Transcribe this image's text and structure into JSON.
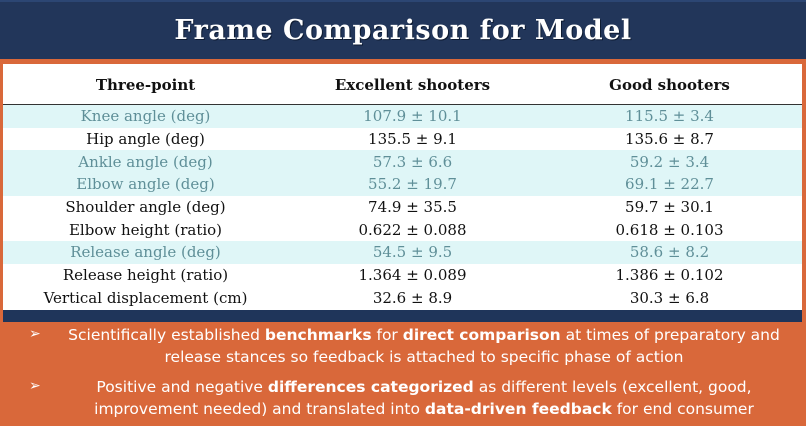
{
  "title": "Frame Comparison for Model",
  "table": {
    "headers": [
      "Three-point",
      "Excellent shooters",
      "Good shooters"
    ],
    "rows": [
      {
        "label": "Knee angle (deg)",
        "excellent": "107.9 ± 10.1",
        "good": "115.5 ± 3.4",
        "highlight": true
      },
      {
        "label": "Hip angle (deg)",
        "excellent": "135.5 ± 9.1",
        "good": "135.6 ± 8.7",
        "highlight": false
      },
      {
        "label": "Ankle angle (deg)",
        "excellent": "57.3 ± 6.6",
        "good": "59.2 ± 3.4",
        "highlight": true
      },
      {
        "label": "Elbow angle (deg)",
        "excellent": "55.2 ± 19.7",
        "good": "69.1 ± 22.7",
        "highlight": true
      },
      {
        "label": "Shoulder angle (deg)",
        "excellent": "74.9 ± 35.5",
        "good": "59.7 ± 30.1",
        "highlight": false
      },
      {
        "label": "Elbow height (ratio)",
        "excellent": "0.622 ± 0.088",
        "good": "0.618 ± 0.103",
        "highlight": false
      },
      {
        "label": "Release angle (deg)",
        "excellent": "54.5 ± 9.5",
        "good": "58.6 ± 8.2",
        "highlight": true
      },
      {
        "label": "Release height (ratio)",
        "excellent": "1.364 ± 0.089",
        "good": "1.386 ± 0.102",
        "highlight": false
      },
      {
        "label": "Vertical displacement (cm)",
        "excellent": "32.6 ± 8.9",
        "good": "30.3 ± 6.8",
        "highlight": false
      }
    ]
  },
  "bullets": [
    {
      "symbol": "➢",
      "parts": [
        {
          "text": "Scientifically established ",
          "bold": false
        },
        {
          "text": "benchmarks",
          "bold": true
        },
        {
          "text": " for ",
          "bold": false
        },
        {
          "text": "direct comparison",
          "bold": true
        },
        {
          "text": " at times of preparatory and release stances so feedback is attached to specific phase of action",
          "bold": false
        }
      ]
    },
    {
      "symbol": "➢",
      "parts": [
        {
          "text": "Positive and negative ",
          "bold": false
        },
        {
          "text": "differences categorized",
          "bold": true
        },
        {
          "text": " as different levels (excellent, good, improvement needed) and translated into ",
          "bold": false
        },
        {
          "text": "data-driven feedback",
          "bold": true
        },
        {
          "text": " for end consumer",
          "bold": false
        }
      ]
    }
  ],
  "colors": {
    "background": "#d9683a",
    "title_bar": "#22365a",
    "highlight_row": "#dff6f7",
    "highlight_text": "#5f8f98"
  }
}
